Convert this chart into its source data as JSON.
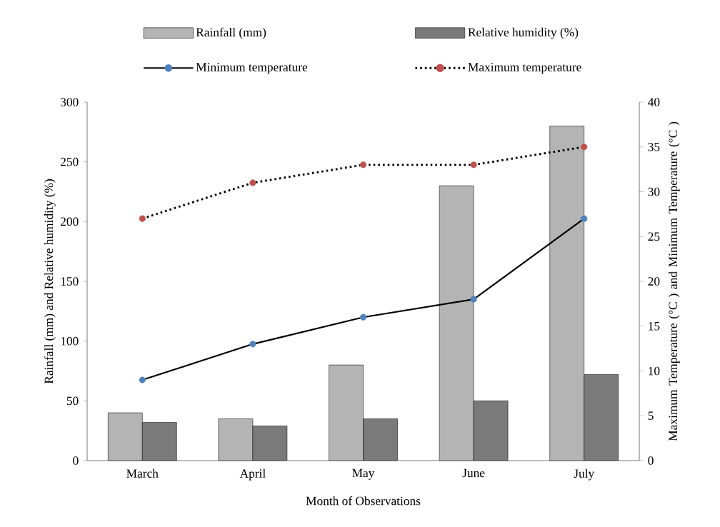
{
  "chart_data": {
    "type": "bar",
    "categories": [
      "March",
      "April",
      "May",
      "June",
      "July"
    ],
    "series": [
      {
        "name": "Rainfall (mm)",
        "color": "#b4b4b4",
        "values": [
          40,
          35,
          80,
          230,
          280
        ]
      },
      {
        "name": "Relative humidity (%)",
        "color": "#7a7a7a",
        "values": [
          32,
          29,
          35,
          50,
          72
        ]
      },
      {
        "name": "Minimum temperature",
        "type": "line",
        "axis": "y2",
        "color": "#4f81bd",
        "line_style": "solid",
        "values": [
          9,
          13,
          16,
          18,
          27
        ]
      },
      {
        "name": "Maximum temperature",
        "type": "line",
        "axis": "y2",
        "color": "#c0504d",
        "line_style": "dotted",
        "values": [
          27,
          31,
          33,
          33,
          35
        ]
      }
    ],
    "xlabel": "Month of Observations",
    "ylabel": "Rainfall (mm) and Relative humidity (%)",
    "y2label": "Maximum Temperature (°C ) and Minimum Temperature (°C )",
    "ylim": [
      0,
      300
    ],
    "yticks": [
      0,
      50,
      100,
      150,
      200,
      250,
      300
    ],
    "y2lim": [
      0,
      40
    ],
    "y2ticks": [
      0,
      5,
      10,
      15,
      20,
      25,
      30,
      35,
      40
    ],
    "legend": "top",
    "marker": "circle"
  }
}
